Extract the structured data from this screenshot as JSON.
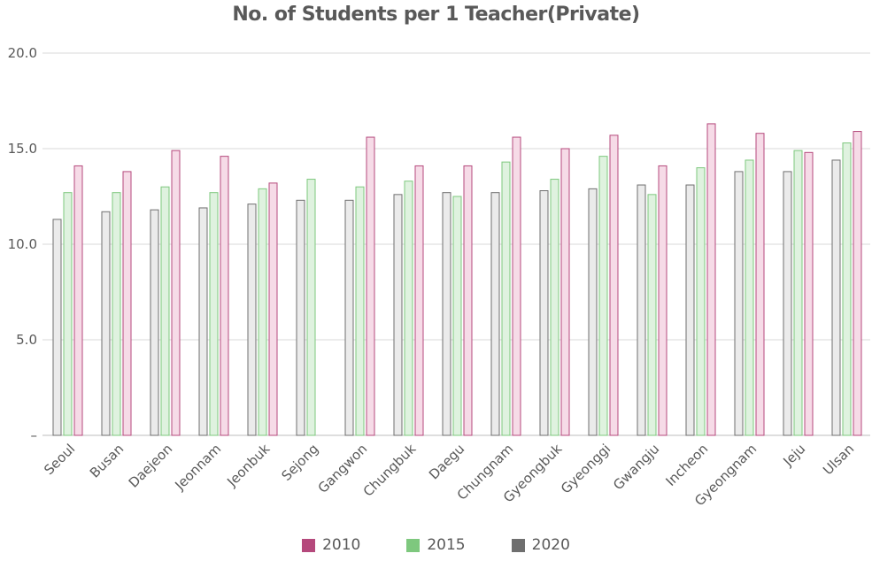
{
  "chart_data": {
    "type": "bar",
    "title": "No. of Students per 1 Teacher(Private)",
    "xlabel": "",
    "ylabel": "",
    "ylim": [
      0,
      20
    ],
    "yticks": [
      {
        "value": 0,
        "label": "–"
      },
      {
        "value": 5,
        "label": "5.0"
      },
      {
        "value": 10,
        "label": "10.0"
      },
      {
        "value": 15,
        "label": "15.0"
      },
      {
        "value": 20,
        "label": "20.0"
      }
    ],
    "grid": true,
    "legend_position": "bottom",
    "categories": [
      "Seoul",
      "Busan",
      "Daejeon",
      "Jeonnam",
      "Jeonbuk",
      "Sejong",
      "Gangwon",
      "Chungbuk",
      "Daegu",
      "Chungnam",
      "Gyeongbuk",
      "Gyeonggi",
      "Gwangju",
      "Incheon",
      "Gyeongnam",
      "Jeju",
      "Ulsan"
    ],
    "series": [
      {
        "name": "2020",
        "color": "#6f6f6f",
        "fill": "#ebebeb",
        "values": [
          11.3,
          11.7,
          11.8,
          11.9,
          12.1,
          12.3,
          12.3,
          12.6,
          12.7,
          12.7,
          12.8,
          12.9,
          13.1,
          13.1,
          13.8,
          13.8,
          14.4
        ]
      },
      {
        "name": "2015",
        "color": "#7ec87e",
        "fill": "#dff2df",
        "values": [
          12.7,
          12.7,
          13.0,
          12.7,
          12.9,
          13.4,
          13.0,
          13.3,
          12.5,
          14.3,
          13.4,
          14.6,
          12.6,
          14.0,
          14.4,
          14.9,
          15.3
        ]
      },
      {
        "name": "2010",
        "color": "#b5497c",
        "fill": "#f6dbe7",
        "values": [
          14.1,
          13.8,
          14.9,
          14.6,
          13.2,
          null,
          15.6,
          14.1,
          14.1,
          15.6,
          15.0,
          15.7,
          14.1,
          16.3,
          15.8,
          14.8,
          15.9
        ]
      }
    ]
  },
  "legend": [
    {
      "label": "2010",
      "color": "#b5497c"
    },
    {
      "label": "2015",
      "color": "#7ec87e"
    },
    {
      "label": "2020",
      "color": "#6f6f6f"
    }
  ]
}
